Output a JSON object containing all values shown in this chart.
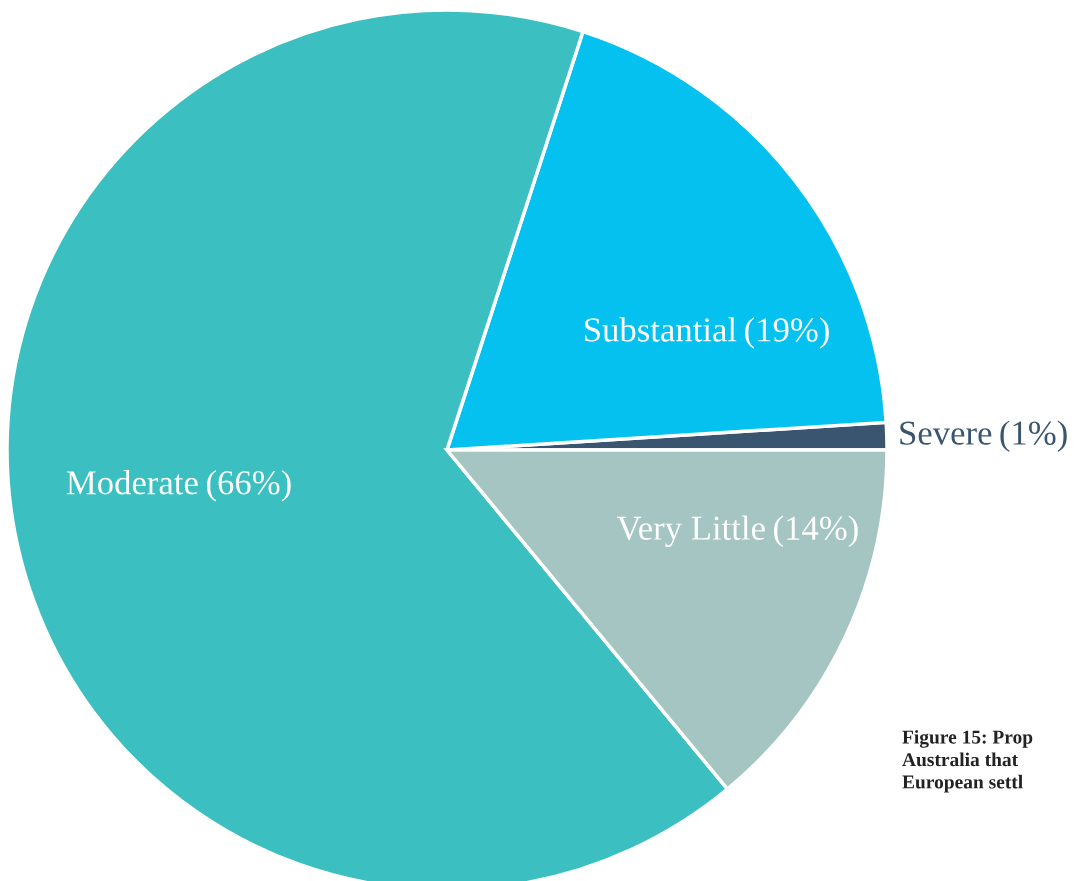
{
  "chart_data": {
    "type": "pie",
    "categories": [
      "Severe",
      "Substantial",
      "Moderate",
      "Very Little"
    ],
    "values": [
      1,
      19,
      66,
      14
    ],
    "colors": [
      "#3a5570",
      "#04c1f0",
      "#3bbfc1",
      "#a4c5c2"
    ],
    "value_labels": [
      "(1%)",
      "(19%)",
      "(66%)",
      "(14%)"
    ],
    "data_labels": true,
    "annotations": [
      "Figure 15: Prop\nAustralia that\nEuropean settl"
    ]
  }
}
